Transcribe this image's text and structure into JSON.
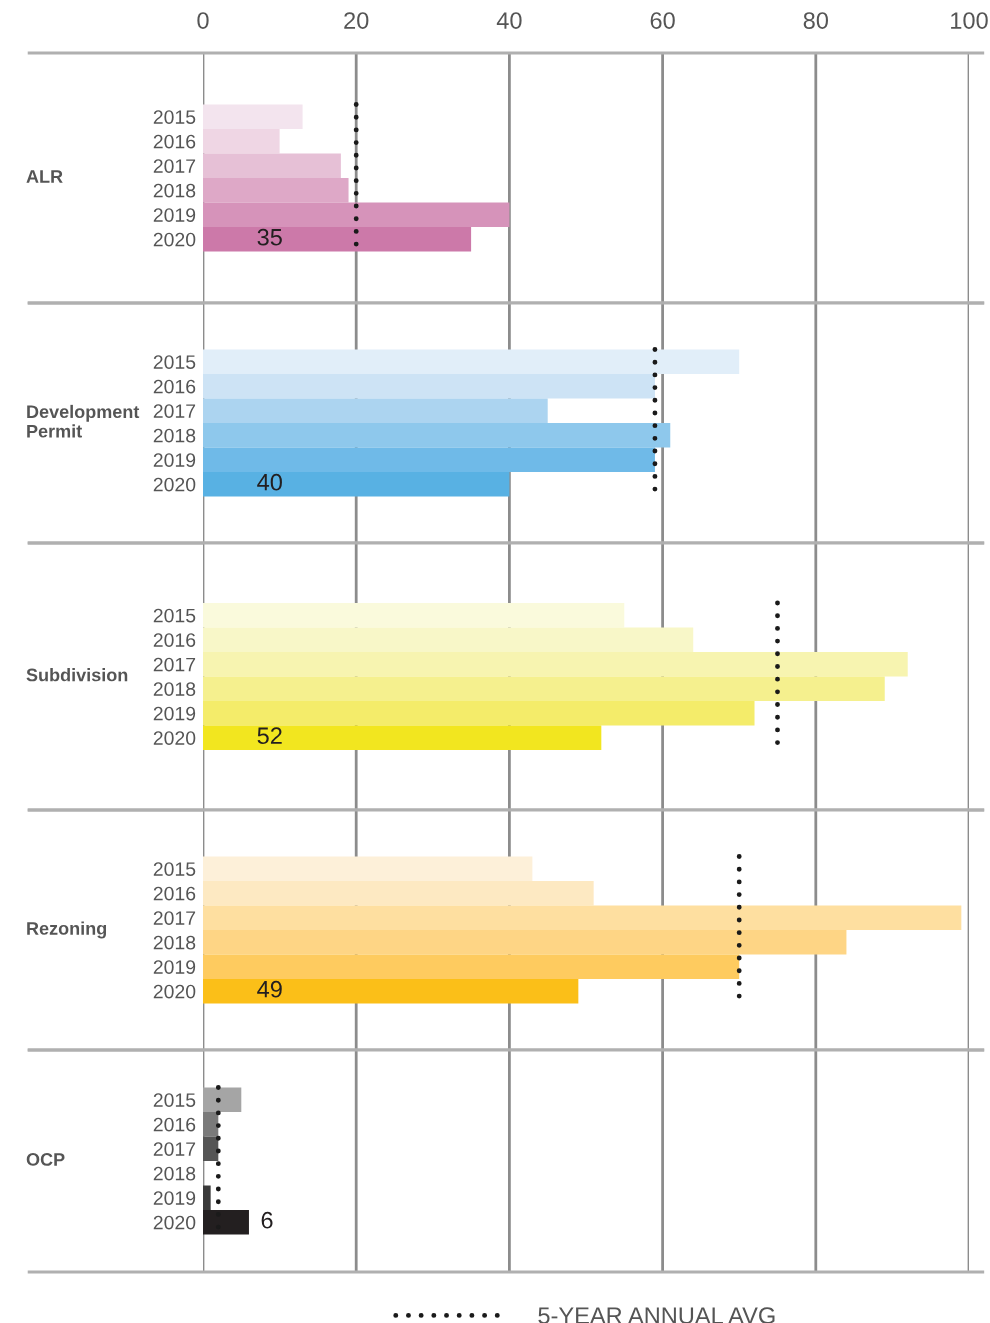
{
  "chart_data": [
    {
      "type": "bar",
      "orientation": "horizontal",
      "ylabel": "ALR",
      "categories": [
        "2015",
        "2016",
        "2017",
        "2018",
        "2019",
        "2020"
      ],
      "values": [
        13,
        10,
        18,
        19,
        40,
        35
      ],
      "colors": [
        "#f3e4ee",
        "#efd6e4",
        "#e6c0d6",
        "#dea8c7",
        "#d693ba",
        "#cc79a9"
      ],
      "value_labels": [
        null,
        null,
        null,
        null,
        null,
        "35"
      ],
      "xlim": [
        0,
        100
      ],
      "xticks": [
        0,
        20,
        40,
        60,
        80,
        100
      ],
      "grid": "x",
      "ref_lines": [
        {
          "axis": "x",
          "value": 20,
          "line_style": "dotted",
          "color": "#1a1a1a"
        }
      ]
    },
    {
      "type": "bar",
      "orientation": "horizontal",
      "ylabel": "Development\nPermit",
      "categories": [
        "2015",
        "2016",
        "2017",
        "2018",
        "2019",
        "2020"
      ],
      "values": [
        70,
        59,
        45,
        61,
        59,
        40
      ],
      "colors": [
        "#e1eef9",
        "#cde3f5",
        "#acd4f0",
        "#8ec8ec",
        "#6fbae8",
        "#58b1e3"
      ],
      "value_labels": [
        null,
        null,
        null,
        null,
        null,
        "40"
      ],
      "xlim": [
        0,
        100
      ],
      "xticks": [
        0,
        20,
        40,
        60,
        80,
        100
      ],
      "grid": "x",
      "tick_labels": "y",
      "ref_lines": [
        {
          "axis": "x",
          "value": 59,
          "line_style": "dotted",
          "color": "#1a1a1a"
        }
      ]
    },
    {
      "type": "bar",
      "orientation": "horizontal",
      "ylabel": "Subdivision",
      "categories": [
        "2015",
        "2016",
        "2017",
        "2018",
        "2019",
        "2020"
      ],
      "values": [
        55,
        64,
        92,
        89,
        72,
        52
      ],
      "colors": [
        "#fafadc",
        "#f8f7c8",
        "#f7f4b0",
        "#f5f08e",
        "#f4ec6a",
        "#f2e61f"
      ],
      "value_labels": [
        null,
        null,
        null,
        null,
        null,
        "52"
      ],
      "xlim": [
        0,
        100
      ],
      "xticks": [
        0,
        20,
        40,
        60,
        80,
        100
      ],
      "grid": "x",
      "tick_labels": "y",
      "ref_lines": [
        {
          "axis": "x",
          "value": 75,
          "line_style": "dotted",
          "color": "#1a1a1a"
        }
      ]
    },
    {
      "type": "bar",
      "orientation": "horizontal",
      "ylabel": "Rezoning",
      "categories": [
        "2015",
        "2016",
        "2017",
        "2018",
        "2019",
        "2020"
      ],
      "values": [
        43,
        51,
        99,
        84,
        70,
        49
      ],
      "colors": [
        "#fdf0d9",
        "#fde9c2",
        "#fedfa0",
        "#fed585",
        "#fecb5f",
        "#fbbf18"
      ],
      "value_labels": [
        null,
        null,
        null,
        null,
        null,
        "49"
      ],
      "xlim": [
        0,
        100
      ],
      "xticks": [
        0,
        20,
        40,
        60,
        80,
        100
      ],
      "grid": "x",
      "tick_labels": "y",
      "ref_lines": [
        {
          "axis": "x",
          "value": 70,
          "line_style": "dotted",
          "color": "#1a1a1a"
        }
      ]
    },
    {
      "type": "bar",
      "orientation": "horizontal",
      "ylabel": "OCP",
      "categories": [
        "2015",
        "2016",
        "2017",
        "2018",
        "2019",
        "2020"
      ],
      "values": [
        5,
        2,
        2,
        0,
        1,
        6
      ],
      "colors": [
        "#a5a5a5",
        "#7a7a7a",
        "#555555",
        "#3c3c3c",
        "#3a3a3a",
        "#231f20"
      ],
      "value_labels": [
        null,
        null,
        null,
        null,
        null,
        "6"
      ],
      "xlim": [
        0,
        100
      ],
      "xticks": [
        0,
        20,
        40,
        60,
        80,
        100
      ],
      "grid": "x",
      "tick_labels": "y",
      "legend": "bottom",
      "ref_lines": [
        {
          "axis": "x",
          "value": 2,
          "label": "5-YEAR ANNUAL AVG",
          "line_style": "dotted",
          "color": "#1a1a1a"
        }
      ]
    }
  ]
}
